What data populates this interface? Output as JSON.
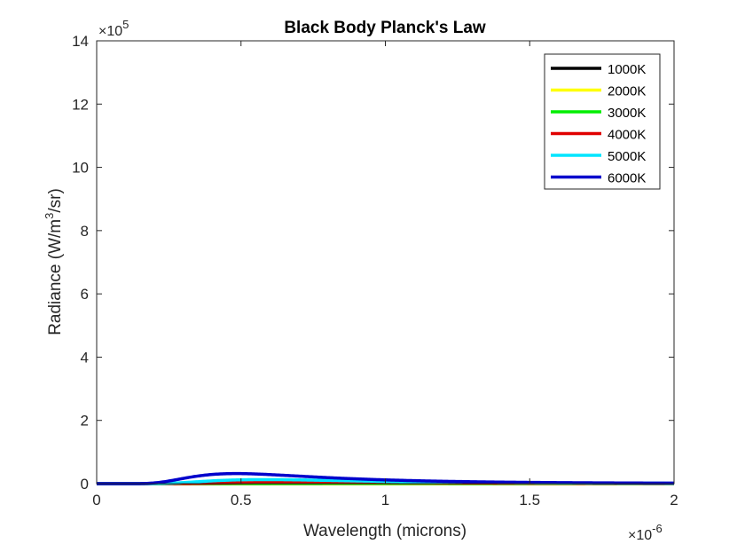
{
  "chart_data": {
    "type": "line",
    "title": "Black Body Planck's Law",
    "xlabel": "Wavelength (microns)",
    "ylabel": "Radiance (W/m³/sr)",
    "x_exponent": "-6",
    "y_exponent": "5",
    "exp_prefix": "×10",
    "xlim": [
      0,
      2
    ],
    "ylim": [
      0,
      14
    ],
    "xticks": [
      0,
      0.5,
      1,
      1.5,
      2
    ],
    "xtick_labels": [
      "0",
      "0.5",
      "1",
      "1.5",
      "2"
    ],
    "yticks": [
      0,
      2,
      4,
      6,
      8,
      10,
      12,
      14
    ],
    "ytick_labels": [
      "0",
      "2",
      "4",
      "6",
      "8",
      "10",
      "12",
      "14"
    ],
    "grid": false,
    "legend_position": "top-right",
    "series": [
      {
        "name": "1000K",
        "color": "#000000",
        "temperature": 1000
      },
      {
        "name": "2000K",
        "color": "#ffff00",
        "temperature": 2000
      },
      {
        "name": "3000K",
        "color": "#00ee00",
        "temperature": 3000
      },
      {
        "name": "4000K",
        "color": "#e00000",
        "temperature": 4000
      },
      {
        "name": "5000K",
        "color": "#00e5ff",
        "temperature": 5000
      },
      {
        "name": "6000K",
        "color": "#0000cc",
        "temperature": 6000
      }
    ]
  }
}
